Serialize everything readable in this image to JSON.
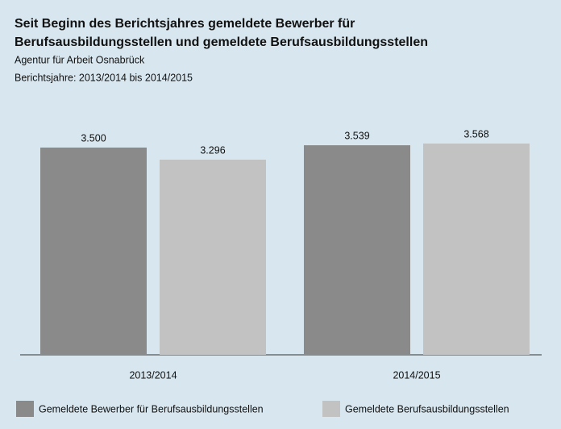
{
  "chart_data": {
    "type": "bar",
    "title": "Seit Beginn des Berichtsjahres gemeldete Bewerber für Berufsausbildungsstellen und gemeldete Berufsausbildungsstellen",
    "subtitles": [
      "Agentur für Arbeit Osnabrück",
      "Berichtsjahre: 2013/2014 bis 2014/2015"
    ],
    "categories": [
      "2013/2014",
      "2014/2015"
    ],
    "series": [
      {
        "name": "Gemeldete Bewerber für Berufsausbildungsstellen",
        "color": "#8a8a8a",
        "values": [
          3500,
          3539
        ],
        "value_labels": [
          "3.500",
          "3.539"
        ]
      },
      {
        "name": "Gemeldete Berufsausbildungsstellen",
        "color": "#c2c2c2",
        "values": [
          3296,
          3568
        ],
        "value_labels": [
          "3.296",
          "3.568"
        ]
      }
    ]
  }
}
